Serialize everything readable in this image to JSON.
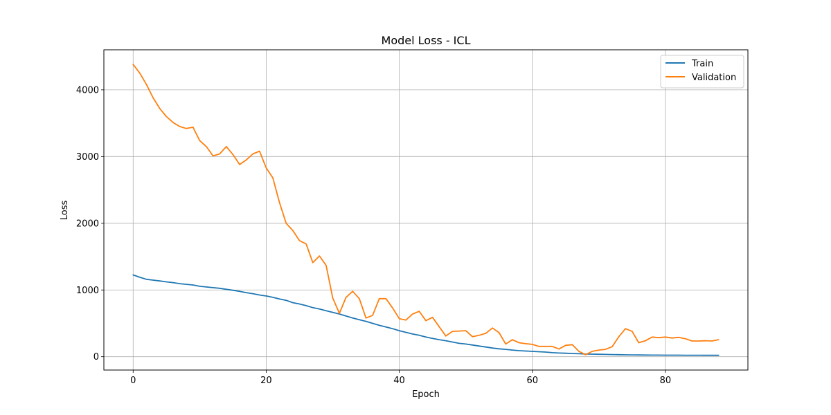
{
  "chart_data": {
    "type": "line",
    "title": "Model Loss - ICL",
    "xlabel": "Epoch",
    "ylabel": "Loss",
    "xlim": [
      -4.4,
      92.4
    ],
    "ylim": [
      -200,
      4600
    ],
    "xticks": [
      0,
      20,
      40,
      60,
      80
    ],
    "yticks": [
      0,
      1000,
      2000,
      3000,
      4000
    ],
    "grid": true,
    "legend_position": "top-right",
    "x": [
      0,
      1,
      2,
      3,
      4,
      5,
      6,
      7,
      8,
      9,
      10,
      11,
      12,
      13,
      14,
      15,
      16,
      17,
      18,
      19,
      20,
      21,
      22,
      23,
      24,
      25,
      26,
      27,
      28,
      29,
      30,
      31,
      32,
      33,
      34,
      35,
      36,
      37,
      38,
      39,
      40,
      41,
      42,
      43,
      44,
      45,
      46,
      47,
      48,
      49,
      50,
      51,
      52,
      53,
      54,
      55,
      56,
      57,
      58,
      59,
      60,
      61,
      62,
      63,
      64,
      65,
      66,
      67,
      68,
      69,
      70,
      71,
      72,
      73,
      74,
      75,
      76,
      77,
      78,
      79,
      80,
      81,
      82,
      83,
      84,
      85,
      86,
      87,
      88
    ],
    "series": [
      {
        "name": "Train",
        "color": "#1f77b4",
        "values": [
          1225,
          1190,
          1160,
          1148,
          1135,
          1122,
          1110,
          1095,
          1085,
          1075,
          1055,
          1045,
          1035,
          1025,
          1010,
          995,
          980,
          960,
          945,
          925,
          910,
          890,
          865,
          845,
          810,
          790,
          765,
          735,
          715,
          690,
          665,
          640,
          610,
          580,
          555,
          530,
          500,
          470,
          445,
          420,
          390,
          365,
          340,
          320,
          295,
          275,
          255,
          240,
          220,
          200,
          190,
          175,
          160,
          145,
          130,
          118,
          110,
          100,
          90,
          85,
          80,
          75,
          70,
          60,
          55,
          52,
          48,
          45,
          40,
          38,
          36,
          34,
          32,
          30,
          28,
          27,
          26,
          25,
          24,
          24,
          23,
          23,
          23,
          22,
          22,
          22,
          21,
          21,
          21
        ]
      },
      {
        "name": "Validation",
        "color": "#ff7f0e",
        "values": [
          4380,
          4250,
          4080,
          3880,
          3720,
          3600,
          3510,
          3450,
          3420,
          3440,
          3240,
          3150,
          3010,
          3040,
          3150,
          3030,
          2880,
          2950,
          3040,
          3080,
          2830,
          2680,
          2310,
          2000,
          1890,
          1740,
          1690,
          1410,
          1510,
          1370,
          880,
          650,
          890,
          980,
          870,
          580,
          620,
          870,
          870,
          730,
          570,
          550,
          640,
          680,
          540,
          590,
          450,
          310,
          380,
          385,
          390,
          300,
          320,
          350,
          430,
          360,
          190,
          255,
          210,
          195,
          185,
          155,
          155,
          155,
          115,
          170,
          180,
          80,
          30,
          80,
          100,
          110,
          150,
          300,
          420,
          380,
          210,
          240,
          295,
          285,
          295,
          280,
          290,
          270,
          235,
          235,
          240,
          235,
          255
        ]
      }
    ]
  }
}
